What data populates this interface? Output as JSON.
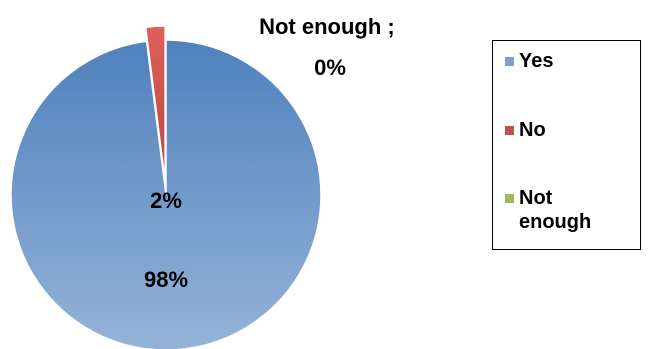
{
  "chart_data": {
    "type": "pie",
    "categories": [
      "Yes",
      "No",
      "Not enough"
    ],
    "values": [
      98,
      2,
      0
    ],
    "colors": [
      "#7a9fd0",
      "#c0504d",
      "#9bbb59"
    ],
    "data_labels": [
      "98%",
      "2%",
      "Not enough ;\n0%"
    ],
    "exploded": [
      "No"
    ],
    "legend_position": "right"
  }
}
